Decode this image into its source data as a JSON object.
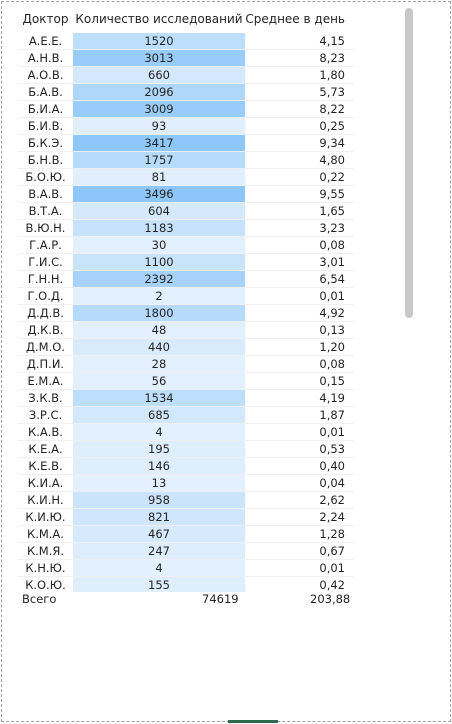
{
  "headers": {
    "doctor": "Доктор",
    "count": "Количество исследований",
    "avg": "Среднее в день"
  },
  "max_count": 3496,
  "rows": [
    {
      "doctor": "А.Е.Е.",
      "count": "1520",
      "avg": "4,15",
      "n": 1520
    },
    {
      "doctor": "А.Н.В.",
      "count": "3013",
      "avg": "8,23",
      "n": 3013
    },
    {
      "doctor": "А.О.В.",
      "count": "660",
      "avg": "1,80",
      "n": 660
    },
    {
      "doctor": "Б.А.В.",
      "count": "2096",
      "avg": "5,73",
      "n": 2096
    },
    {
      "doctor": "Б.И.А.",
      "count": "3009",
      "avg": "8,22",
      "n": 3009
    },
    {
      "doctor": "Б.И.В.",
      "count": "93",
      "avg": "0,25",
      "n": 93
    },
    {
      "doctor": "Б.К.Э.",
      "count": "3417",
      "avg": "9,34",
      "n": 3417
    },
    {
      "doctor": "Б.Н.В.",
      "count": "1757",
      "avg": "4,80",
      "n": 1757
    },
    {
      "doctor": "Б.О.Ю.",
      "count": "81",
      "avg": "0,22",
      "n": 81
    },
    {
      "doctor": "В.А.В.",
      "count": "3496",
      "avg": "9,55",
      "n": 3496
    },
    {
      "doctor": "В.Т.А.",
      "count": "604",
      "avg": "1,65",
      "n": 604
    },
    {
      "doctor": "В.Ю.Н.",
      "count": "1183",
      "avg": "3,23",
      "n": 1183
    },
    {
      "doctor": "Г.А.Р.",
      "count": "30",
      "avg": "0,08",
      "n": 30
    },
    {
      "doctor": "Г.И.С.",
      "count": "1100",
      "avg": "3,01",
      "n": 1100
    },
    {
      "doctor": "Г.Н.Н.",
      "count": "2392",
      "avg": "6,54",
      "n": 2392
    },
    {
      "doctor": "Г.О.Д.",
      "count": "2",
      "avg": "0,01",
      "n": 2
    },
    {
      "doctor": "Д.Д.В.",
      "count": "1800",
      "avg": "4,92",
      "n": 1800
    },
    {
      "doctor": "Д.К.В.",
      "count": "48",
      "avg": "0,13",
      "n": 48
    },
    {
      "doctor": "Д.М.О.",
      "count": "440",
      "avg": "1,20",
      "n": 440
    },
    {
      "doctor": "Д.П.И.",
      "count": "28",
      "avg": "0,08",
      "n": 28
    },
    {
      "doctor": "Е.М.А.",
      "count": "56",
      "avg": "0,15",
      "n": 56
    },
    {
      "doctor": "З.К.В.",
      "count": "1534",
      "avg": "4,19",
      "n": 1534
    },
    {
      "doctor": "З.Р.С.",
      "count": "685",
      "avg": "1,87",
      "n": 685
    },
    {
      "doctor": "К.А.В.",
      "count": "4",
      "avg": "0,01",
      "n": 4
    },
    {
      "doctor": "К.Е.А.",
      "count": "195",
      "avg": "0,53",
      "n": 195
    },
    {
      "doctor": "К.Е.В.",
      "count": "146",
      "avg": "0,40",
      "n": 146
    },
    {
      "doctor": "К.И.А.",
      "count": "13",
      "avg": "0,04",
      "n": 13
    },
    {
      "doctor": "К.И.Н.",
      "count": "958",
      "avg": "2,62",
      "n": 958
    },
    {
      "doctor": "К.И.Ю.",
      "count": "821",
      "avg": "2,24",
      "n": 821
    },
    {
      "doctor": "К.М.А.",
      "count": "467",
      "avg": "1,28",
      "n": 467
    },
    {
      "doctor": "К.М.Я.",
      "count": "247",
      "avg": "0,67",
      "n": 247
    },
    {
      "doctor": "К.Н.Ю.",
      "count": "4",
      "avg": "0,01",
      "n": 4
    },
    {
      "doctor": "К.О.Ю.",
      "count": "155",
      "avg": "0,42",
      "n": 155
    }
  ],
  "totals": {
    "label": "Всего",
    "count": "74619",
    "avg": "203,88"
  },
  "colors": {
    "scale_low": "#e3f0fd",
    "scale_high": "#8cc6fa"
  }
}
